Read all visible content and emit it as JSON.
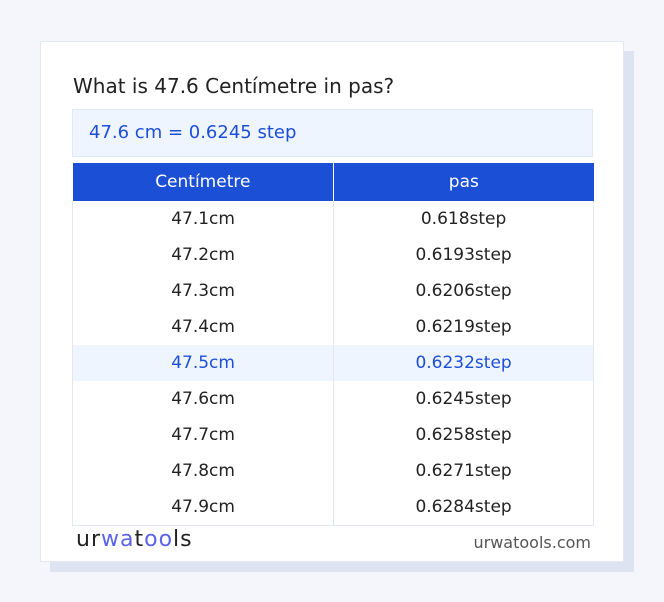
{
  "title": "What is 47.6 Centímetre in pas?",
  "result": "47.6 cm = 0.6245 step",
  "headers": [
    "Centímetre",
    "pas"
  ],
  "rows": [
    [
      "47.1cm",
      "0.618step"
    ],
    [
      "47.2cm",
      "0.6193step"
    ],
    [
      "47.3cm",
      "0.6206step"
    ],
    [
      "47.4cm",
      "0.6219step"
    ],
    [
      "47.5cm",
      "0.6232step"
    ],
    [
      "47.6cm",
      "0.6245step"
    ],
    [
      "47.7cm",
      "0.6258step"
    ],
    [
      "47.8cm",
      "0.6271step"
    ],
    [
      "47.9cm",
      "0.6284step"
    ]
  ],
  "highlight_row": 4,
  "logo": "urwatools",
  "site": "urwatools.com",
  "colors": {
    "accent": "#1a4fd6",
    "highlight_bg": "#eef5fe"
  }
}
